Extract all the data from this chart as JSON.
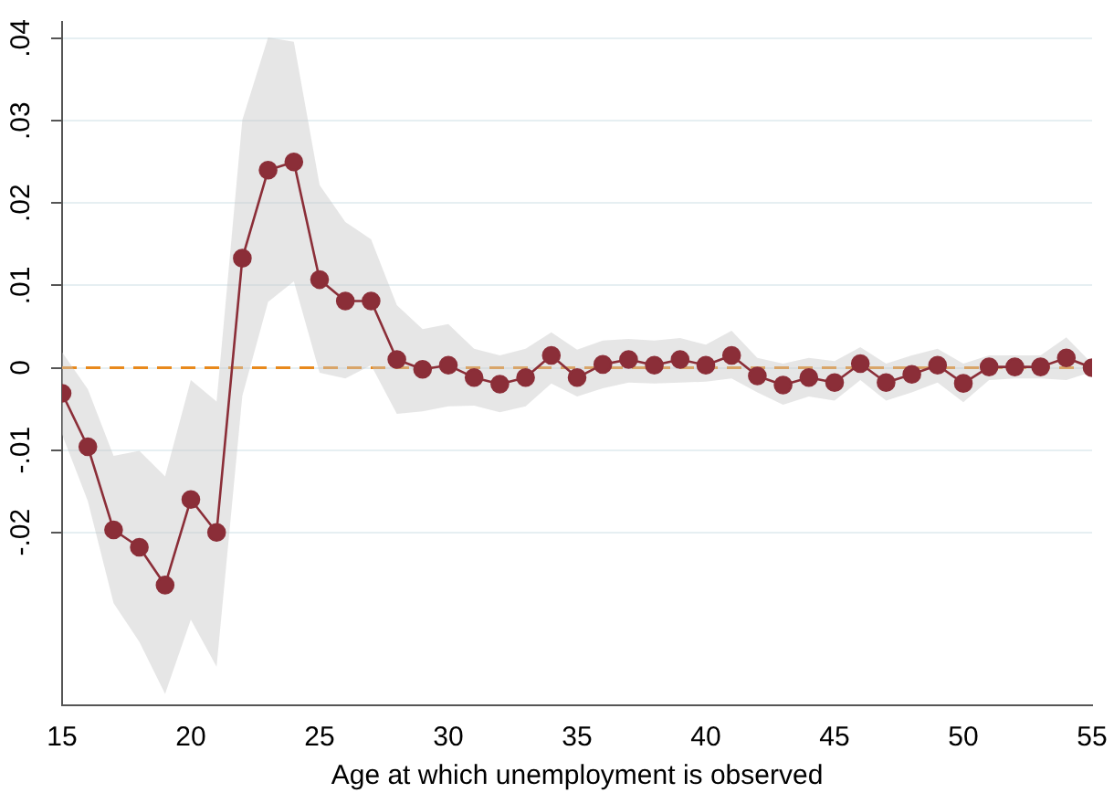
{
  "chart_data": {
    "type": "line",
    "xlabel": "Age at which unemployment is observed",
    "x": [
      15,
      16,
      17,
      18,
      19,
      20,
      21,
      22,
      23,
      24,
      25,
      26,
      27,
      28,
      29,
      30,
      31,
      32,
      33,
      34,
      35,
      36,
      37,
      38,
      39,
      40,
      41,
      42,
      43,
      44,
      45,
      46,
      47,
      48,
      49,
      50,
      51,
      52,
      53,
      54,
      55
    ],
    "series": [
      {
        "color": "#8b2e38",
        "values": [
          -0.0031,
          -0.0096,
          -0.0197,
          -0.0218,
          -0.0264,
          -0.016,
          -0.02,
          0.0133,
          0.024,
          0.025,
          0.0107,
          0.0081,
          0.0081,
          0.001,
          -0.0002,
          0.0003,
          -0.0012,
          -0.002,
          -0.0012,
          0.0015,
          -0.0012,
          0.0004,
          0.001,
          0.0003,
          0.001,
          0.0003,
          0.0015,
          -0.001,
          -0.0021,
          -0.0012,
          -0.0018,
          0.0005,
          -0.0018,
          -0.0008,
          0.0003,
          -0.0019,
          0.0001,
          0.0001,
          0.0001,
          0.0012,
          0
        ],
        "lower": [
          -0.0081,
          -0.0162,
          -0.0286,
          -0.0333,
          -0.0396,
          -0.0306,
          -0.0363,
          -0.0034,
          0.008,
          0.0105,
          -0.0006,
          -0.0013,
          0.0003,
          -0.0056,
          -0.0053,
          -0.0047,
          -0.0046,
          -0.0054,
          -0.0047,
          -0.0019,
          -0.0035,
          -0.0025,
          -0.0018,
          -0.0019,
          -0.0018,
          -0.0017,
          -0.0013,
          -0.003,
          -0.0045,
          -0.0035,
          -0.004,
          -0.0015,
          -0.004,
          -0.003,
          -0.0018,
          -0.0042,
          -0.0015,
          -0.0013,
          -0.0013,
          -0.0015,
          -0.0005
        ],
        "upper": [
          0.0019,
          -0.0026,
          -0.0107,
          -0.0101,
          -0.0132,
          -0.0015,
          -0.0041,
          0.0301,
          0.0401,
          0.0396,
          0.0222,
          0.0177,
          0.0156,
          0.0076,
          0.0047,
          0.0053,
          0.0023,
          0.0015,
          0.0023,
          0.0043,
          0.0022,
          0.0033,
          0.0035,
          0.0033,
          0.0036,
          0.0028,
          0.0045,
          0.0012,
          0.0005,
          0.0012,
          0.0008,
          0.0025,
          0.0005,
          0.0015,
          0.0023,
          0.0005,
          0.0015,
          0.0015,
          0.0015,
          0.0037,
          0.0005
        ]
      }
    ],
    "xlim": [
      15,
      55
    ],
    "xticks": [
      15,
      20,
      25,
      30,
      35,
      40,
      45,
      50,
      55
    ],
    "ylim": [
      -0.041,
      0.042
    ],
    "yticks": [
      {
        "value": -0.02,
        "label": "-.02"
      },
      {
        "value": -0.01,
        "label": "-.01"
      },
      {
        "value": 0,
        "label": "0"
      },
      {
        "value": 0.01,
        "label": ".01"
      },
      {
        "value": 0.02,
        "label": ".02"
      },
      {
        "value": 0.03,
        "label": ".03"
      },
      {
        "value": 0.04,
        "label": ".04"
      }
    ],
    "ref_lines": [
      {
        "axis": "y",
        "value": 0,
        "color": "#e8891c",
        "line_style": "dashed"
      }
    ],
    "grid": "y",
    "legend": false,
    "marker": "circle",
    "line_style": "solid"
  }
}
